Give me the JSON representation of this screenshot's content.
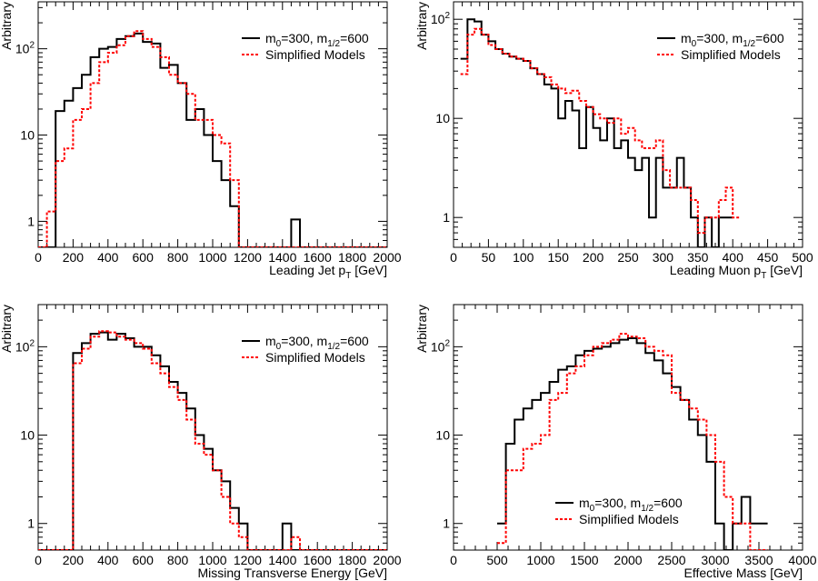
{
  "colors": {
    "series_a": "#000000",
    "series_b": "#ff0000",
    "axis": "#000000",
    "background": "#ffffff"
  },
  "chart_data": [
    {
      "type": "histogram",
      "ylabel": "Arbitrary",
      "xlabel_main": "Leading Jet p",
      "xlabel_sub": "T",
      "xlabel_tail": " [GeV]",
      "x_range": [
        0,
        2000
      ],
      "y_range": [
        0.5,
        350
      ],
      "y_scale": "log",
      "x_ticks": [
        0,
        200,
        400,
        600,
        800,
        1000,
        1200,
        1400,
        1600,
        1800,
        2000
      ],
      "y_ticks": [
        {
          "value": 1,
          "label": "1",
          "sup": ""
        },
        {
          "value": 10,
          "label": "10",
          "sup": ""
        },
        {
          "value": 100,
          "label": "10",
          "sup": "2"
        }
      ],
      "legend_position": "top-right",
      "bins": {
        "start": 0,
        "width": 50
      },
      "series": [
        {
          "name_parts": [
            "m",
            "0",
            "=300, m",
            "1/2",
            "=600"
          ],
          "style": "solid",
          "values": [
            0.5,
            0.5,
            19,
            25,
            35,
            50,
            80,
            100,
            105,
            130,
            140,
            150,
            120,
            115,
            60,
            65,
            40,
            15,
            20,
            10,
            5,
            3,
            1.5,
            0.5,
            0.5,
            0.5,
            0.5,
            0.5,
            0.5,
            1.05,
            0.5,
            0.5,
            0.5,
            0.5,
            0.5,
            0.5,
            0.5,
            0.5,
            0.5,
            0.5
          ]
        },
        {
          "name_parts": [
            "Simplified Models"
          ],
          "style": "dotted",
          "values": [
            0.5,
            1.3,
            5,
            7,
            15,
            20,
            40,
            70,
            90,
            110,
            140,
            160,
            130,
            105,
            80,
            50,
            40,
            30,
            15,
            15,
            10,
            8,
            3,
            0.5,
            0.5,
            0.5,
            0.5,
            0.5,
            0.5,
            0.5,
            0.5,
            0.5,
            0.5,
            0.5,
            0.5,
            0.5,
            0.5,
            0.5,
            0.5,
            0.5
          ]
        }
      ]
    },
    {
      "type": "histogram",
      "ylabel": "Arbitrary",
      "xlabel_main": "Leading Muon p",
      "xlabel_sub": "T",
      "xlabel_tail": " [GeV]",
      "x_range": [
        0,
        500
      ],
      "y_range": [
        0.5,
        150
      ],
      "y_scale": "log",
      "x_ticks": [
        0,
        50,
        100,
        150,
        200,
        250,
        300,
        350,
        400,
        450,
        500
      ],
      "y_ticks": [
        {
          "value": 1,
          "label": "1",
          "sup": ""
        },
        {
          "value": 10,
          "label": "10",
          "sup": ""
        },
        {
          "value": 100,
          "label": "10",
          "sup": "2"
        }
      ],
      "legend_position": "top-right",
      "bins": {
        "start": 10,
        "width": 10
      },
      "series": [
        {
          "name_parts": [
            "m",
            "0",
            "=300, m",
            "1/2",
            "=600"
          ],
          "style": "solid",
          "values": [
            40,
            100,
            95,
            70,
            60,
            50,
            45,
            42,
            40,
            38,
            32,
            28,
            22,
            20,
            10,
            15,
            12,
            5,
            13,
            8,
            6,
            10,
            5,
            6,
            4,
            3,
            4,
            1,
            4,
            2,
            2,
            4,
            2,
            1,
            0.5,
            1,
            0.5,
            1,
            1
          ]
        },
        {
          "name_parts": [
            "Simplified Models"
          ],
          "style": "dotted",
          "values": [
            28,
            70,
            80,
            70,
            55,
            50,
            45,
            42,
            40,
            38,
            32,
            28,
            26,
            22,
            20,
            18,
            19,
            15,
            13,
            11,
            10,
            9,
            10,
            7,
            8,
            6,
            5,
            5,
            6,
            3,
            2,
            2,
            2,
            1.5,
            0.7,
            1,
            1,
            1.5,
            2,
            1
          ]
        }
      ]
    },
    {
      "type": "histogram",
      "ylabel": "Arbitrary",
      "xlabel_main": "Missing Transverse Energy [GeV]",
      "xlabel_sub": "",
      "xlabel_tail": "",
      "x_range": [
        0,
        2000
      ],
      "y_range": [
        0.5,
        300
      ],
      "y_scale": "log",
      "x_ticks": [
        0,
        200,
        400,
        600,
        800,
        1000,
        1200,
        1400,
        1600,
        1800,
        2000
      ],
      "y_ticks": [
        {
          "value": 1,
          "label": "1",
          "sup": ""
        },
        {
          "value": 10,
          "label": "10",
          "sup": ""
        },
        {
          "value": 100,
          "label": "10",
          "sup": "2"
        }
      ],
      "legend_position": "top-right",
      "bins": {
        "start": 0,
        "width": 50
      },
      "series": [
        {
          "name_parts": [
            "m",
            "0",
            "=300, m",
            "1/2",
            "=600"
          ],
          "style": "solid",
          "values": [
            0.5,
            0.5,
            0.5,
            0.5,
            85,
            110,
            140,
            145,
            120,
            140,
            125,
            100,
            100,
            80,
            60,
            40,
            30,
            20,
            10,
            7,
            4,
            3,
            1.5,
            1,
            0.5,
            0.5,
            0.5,
            0.5,
            1,
            0.5,
            0.5,
            0.5,
            0.5,
            0.5,
            0.5,
            0.5,
            0.5,
            0.5,
            0.5,
            0.5
          ]
        },
        {
          "name_parts": [
            "Simplified Models"
          ],
          "style": "dotted",
          "values": [
            0.5,
            0.5,
            0.5,
            0.5,
            65,
            95,
            130,
            150,
            145,
            130,
            120,
            110,
            95,
            65,
            50,
            35,
            25,
            15,
            8,
            6,
            4,
            2,
            1,
            0.7,
            0.5,
            0.5,
            0.5,
            0.5,
            0.5,
            0.7,
            0.5,
            0.5,
            0.5,
            0.5,
            0.5,
            0.5,
            0.5,
            0.5,
            0.5,
            0.5
          ]
        }
      ]
    },
    {
      "type": "histogram",
      "ylabel": "Arbitrary",
      "xlabel_main": "Effective Mass [GeV]",
      "xlabel_sub": "",
      "xlabel_tail": "",
      "x_range": [
        0,
        4000
      ],
      "y_range": [
        0.5,
        300
      ],
      "y_scale": "log",
      "x_ticks": [
        0,
        500,
        1000,
        1500,
        2000,
        2500,
        3000,
        3500,
        4000
      ],
      "y_ticks": [
        {
          "value": 1,
          "label": "1",
          "sup": ""
        },
        {
          "value": 10,
          "label": "10",
          "sup": ""
        },
        {
          "value": 100,
          "label": "10",
          "sup": "2"
        }
      ],
      "legend_position": "bottom-right",
      "bins": {
        "start": 500,
        "width": 100
      },
      "series": [
        {
          "name_parts": [
            "m",
            "0",
            "=300, m",
            "1/2",
            "=600"
          ],
          "style": "solid",
          "values": [
            1,
            8,
            15,
            20,
            25,
            30,
            40,
            55,
            60,
            80,
            90,
            95,
            100,
            110,
            120,
            125,
            110,
            85,
            70,
            50,
            35,
            25,
            15,
            10,
            5,
            1,
            0.5,
            1,
            2,
            1,
            1
          ]
        },
        {
          "name_parts": [
            "Simplified Models"
          ],
          "style": "dotted",
          "values": [
            0.6,
            4,
            4,
            7,
            8,
            10,
            25,
            30,
            50,
            60,
            80,
            100,
            110,
            120,
            140,
            130,
            125,
            100,
            90,
            80,
            30,
            25,
            20,
            15,
            10,
            5,
            2,
            1,
            1,
            0.5,
            0.5
          ]
        }
      ]
    }
  ]
}
